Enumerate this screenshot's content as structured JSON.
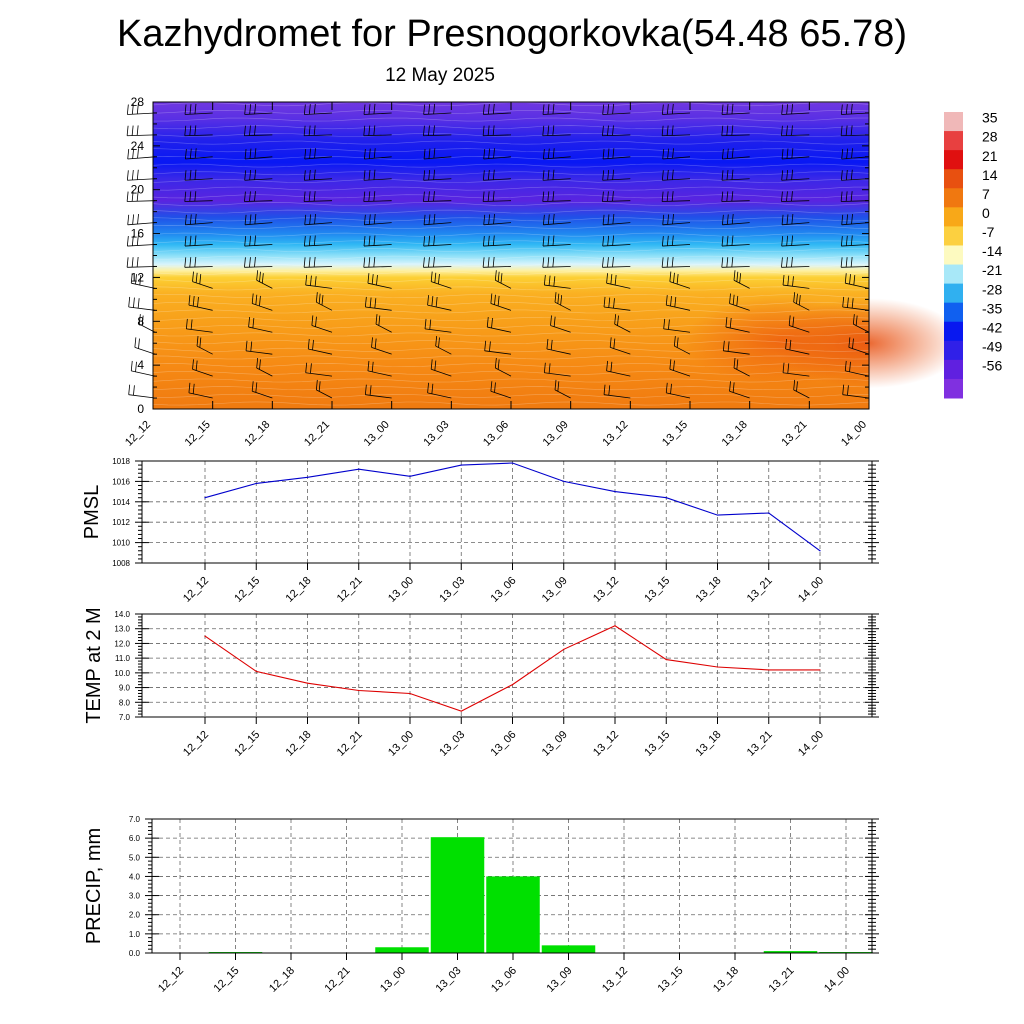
{
  "header": {
    "title": "Kazhydromet for Presnogorkovka(54.48 65.78)",
    "date": "12 May 2025"
  },
  "colors": {
    "pmsl_line": "#0000cc",
    "temp_line": "#dd0000",
    "precip_bar": "#00e000",
    "barb": "#000000"
  },
  "chart_data": [
    {
      "type": "heatmap",
      "ylim": [
        0,
        28
      ],
      "y_ticks": [
        0,
        4,
        8,
        12,
        16,
        20,
        24,
        28
      ],
      "x_tick_labels": [
        "12_12",
        "12_15",
        "12_18",
        "12_21",
        "13_00",
        "13_03",
        "13_06",
        "13_09",
        "13_12",
        "13_15",
        "13_18",
        "13_21",
        "14_00"
      ],
      "colorbar_labels": [
        "35",
        "28",
        "21",
        "14",
        "7",
        "0",
        "-7",
        "-14",
        "-21",
        "-28",
        "-35",
        "-42",
        "-49",
        "-56"
      ],
      "colorbar_colors": [
        "#f0b8b8",
        "#e84040",
        "#e01010",
        "#e85010",
        "#f07810",
        "#f8a818",
        "#fcd040",
        "#fdfac0",
        "#a8e8f8",
        "#30b0f0",
        "#1060f0",
        "#0818f0",
        "#3020e8",
        "#6020e0",
        "#8030e0"
      ],
      "bands": [
        {
          "y": 0,
          "color": "#f07a10"
        },
        {
          "y": 4,
          "color": "#f68a14"
        },
        {
          "y": 8,
          "color": "#f8a01a"
        },
        {
          "y": 10.5,
          "color": "#fab022"
        },
        {
          "y": 12,
          "color": "#fcd034"
        },
        {
          "y": 12.6,
          "color": "#fef0a0"
        },
        {
          "y": 13.2,
          "color": "#d8f4fc"
        },
        {
          "y": 14,
          "color": "#8ce0f8"
        },
        {
          "y": 15,
          "color": "#30b8f4"
        },
        {
          "y": 16,
          "color": "#2088f0"
        },
        {
          "y": 17.5,
          "color": "#2050e8"
        },
        {
          "y": 19,
          "color": "#5a24e0"
        },
        {
          "y": 21,
          "color": "#3a28e8"
        },
        {
          "y": 22.5,
          "color": "#0818f4"
        },
        {
          "y": 24.5,
          "color": "#2020ec"
        },
        {
          "y": 26.5,
          "color": "#5a30e4"
        },
        {
          "y": 28,
          "color": "#7038e0"
        }
      ],
      "warm_spots": [
        {
          "x": 10.5,
          "y": 6.2,
          "color": "#ee6010"
        },
        {
          "x": 12,
          "y": 6,
          "color": "#e85010"
        }
      ]
    },
    {
      "type": "line",
      "ylabel": "PMSL",
      "ylim": [
        1008,
        1018
      ],
      "y_ticks": [
        1008,
        1010,
        1012,
        1014,
        1016,
        1018
      ],
      "categories": [
        "12_12",
        "12_15",
        "12_18",
        "12_21",
        "13_00",
        "13_03",
        "13_06",
        "13_09",
        "13_12",
        "13_15",
        "13_18",
        "13_21",
        "14_00"
      ],
      "values": [
        1014.4,
        1015.8,
        1016.4,
        1017.2,
        1016.5,
        1017.6,
        1017.8,
        1016.0,
        1015.0,
        1014.4,
        1012.7,
        1012.9,
        1009.2
      ]
    },
    {
      "type": "line",
      "ylabel": "TEMP at 2 M",
      "ylim": [
        7.0,
        14.0
      ],
      "y_ticks": [
        "7.0",
        "8.0",
        "9.0",
        "10.0",
        "11.0",
        "12.0",
        "13.0",
        "14.0"
      ],
      "categories": [
        "12_12",
        "12_15",
        "12_18",
        "12_21",
        "13_00",
        "13_03",
        "13_06",
        "13_09",
        "13_12",
        "13_15",
        "13_18",
        "13_21",
        "14_00"
      ],
      "values": [
        12.5,
        10.1,
        9.3,
        8.8,
        8.6,
        7.4,
        9.2,
        11.6,
        13.2,
        10.9,
        10.4,
        10.2,
        10.2
      ]
    },
    {
      "type": "bar",
      "ylabel": "PRECIP, mm",
      "ylim": [
        0.0,
        7.0
      ],
      "y_ticks": [
        "0.0",
        "1.0",
        "2.0",
        "3.0",
        "4.0",
        "5.0",
        "6.0",
        "7.0"
      ],
      "categories": [
        "12_12",
        "12_15",
        "12_18",
        "12_21",
        "13_00",
        "13_03",
        "13_06",
        "13_09",
        "13_12",
        "13_15",
        "13_18",
        "13_21",
        "14_00"
      ],
      "values": [
        0.0,
        0.05,
        0.0,
        0.0,
        0.3,
        6.05,
        4.0,
        0.4,
        0.0,
        0.0,
        0.0,
        0.1,
        0.05
      ]
    }
  ]
}
